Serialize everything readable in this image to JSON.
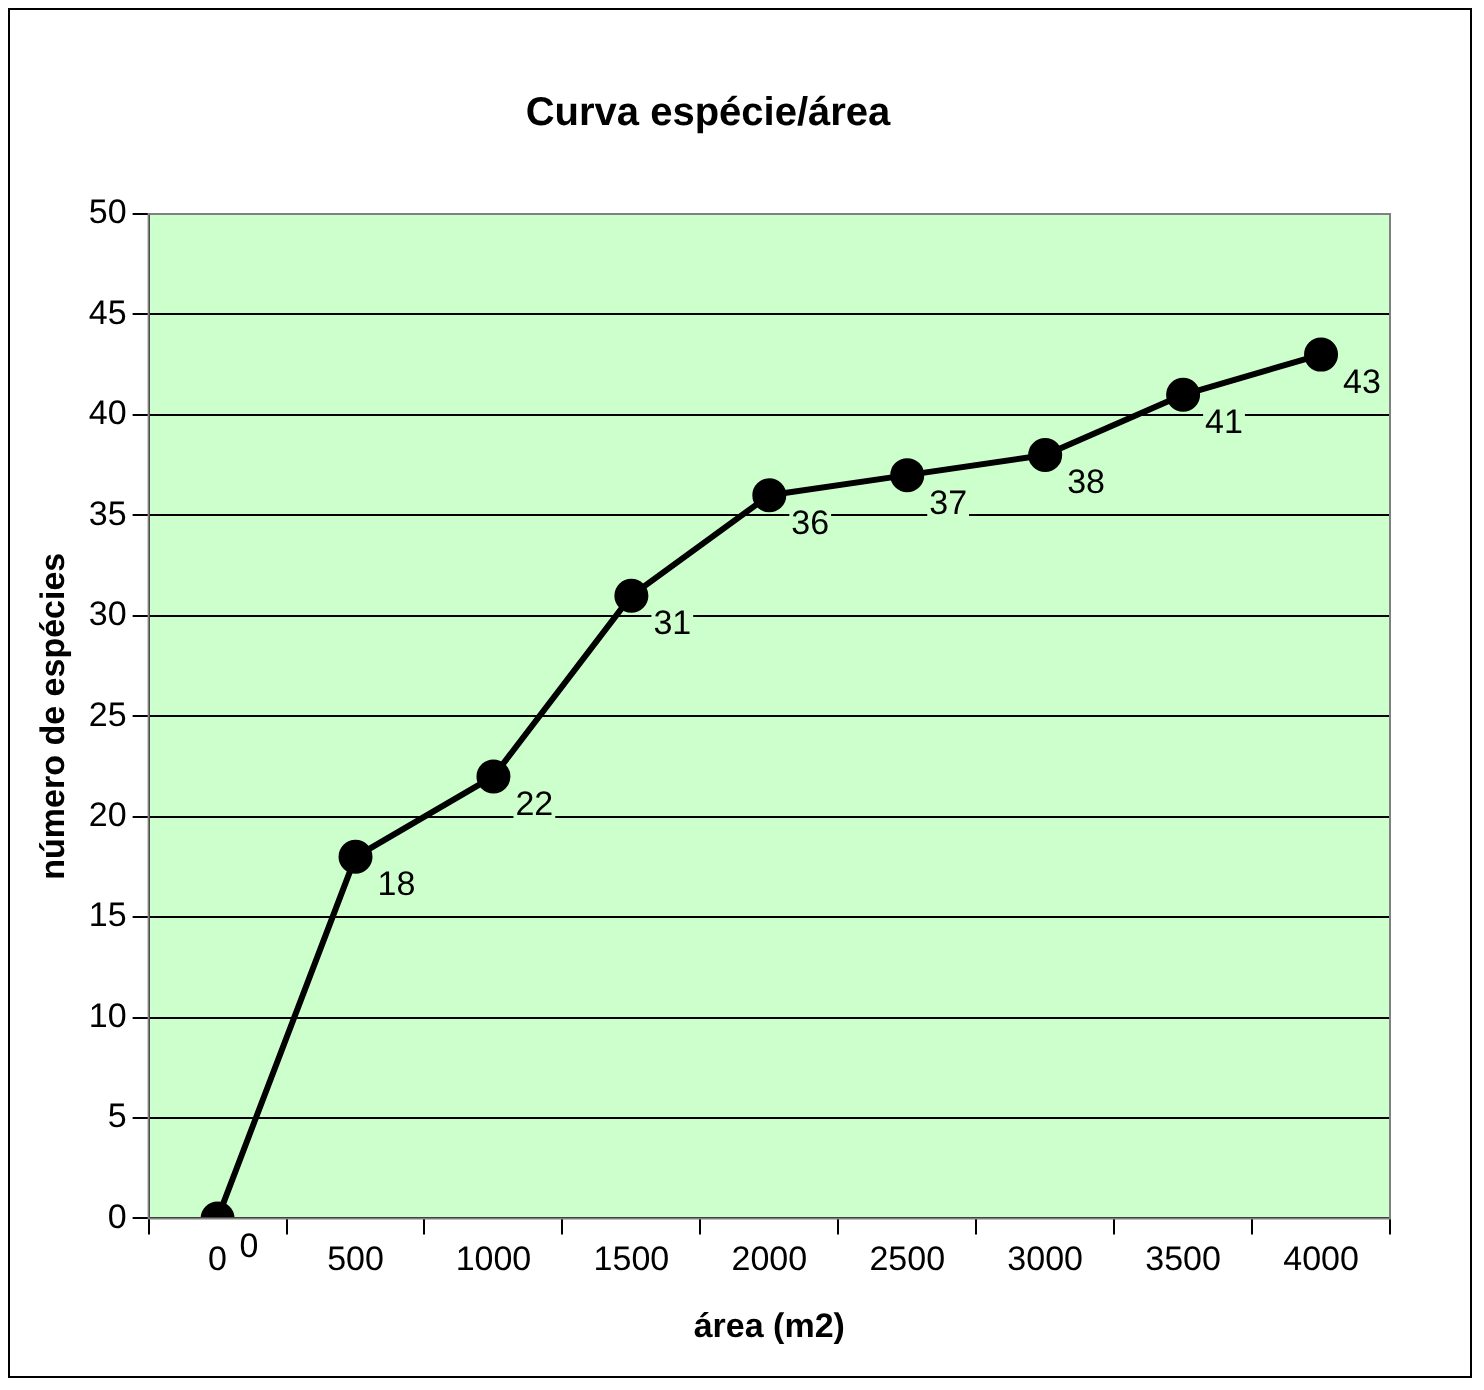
{
  "chart_data": {
    "type": "line",
    "title": "Curva espécie/área",
    "xlabel": "área (m2)",
    "ylabel": "número de espécies",
    "categories": [
      "0",
      "500",
      "1000",
      "1500",
      "2000",
      "2500",
      "3000",
      "3500",
      "4000"
    ],
    "series": [
      {
        "color": "#000000",
        "values": [
          0,
          18,
          22,
          31,
          36,
          37,
          38,
          41,
          43
        ]
      }
    ],
    "ylim": [
      0,
      50
    ],
    "yticks": [
      0,
      5,
      10,
      15,
      20,
      25,
      30,
      35,
      40,
      45,
      50
    ],
    "grid": "y",
    "legend": false,
    "marker": "circle",
    "line_style": "solid",
    "data_labels": true
  }
}
